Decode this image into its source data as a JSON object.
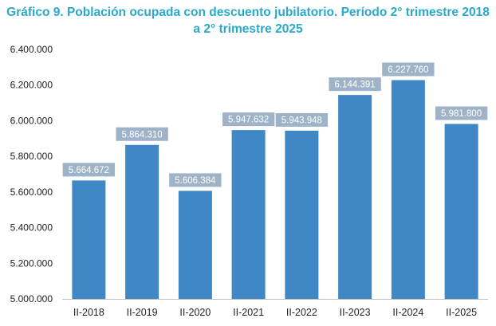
{
  "chart_data": {
    "type": "bar",
    "title_line1": "Gráfico 9. Población ocupada con descuento jubilatorio. Período 2° trimestre 2018",
    "title_line2": "a 2° trimestre 2025",
    "categories": [
      "II-2018",
      "II-2019",
      "II-2020",
      "II-2021",
      "II-2022",
      "II-2023",
      "II-2024",
      "II-2025"
    ],
    "values": [
      5664672,
      5864310,
      5606384,
      5947632,
      5943948,
      6144391,
      6227760,
      5981800
    ],
    "value_labels": [
      "5.664.672",
      "5.864.310",
      "5.606.384",
      "5.947.632",
      "5.943.948",
      "6.144.391",
      "6.227.760",
      "5.981.800"
    ],
    "ylim": [
      5000000,
      6400000
    ],
    "yticks": [
      5000000,
      5200000,
      5400000,
      5600000,
      5800000,
      6000000,
      6200000,
      6400000
    ],
    "ytick_labels": [
      "5.000.000",
      "5.200.000",
      "5.400.000",
      "5.600.000",
      "5.800.000",
      "6.000.000",
      "6.200.000",
      "6.400.000"
    ],
    "xlabel": "",
    "ylabel": "",
    "grid": false,
    "colors": {
      "bar": "#3f88c5",
      "label_box": "#9fb3c8",
      "title": "#29a9cc",
      "axis": "#bfbfbf"
    }
  }
}
